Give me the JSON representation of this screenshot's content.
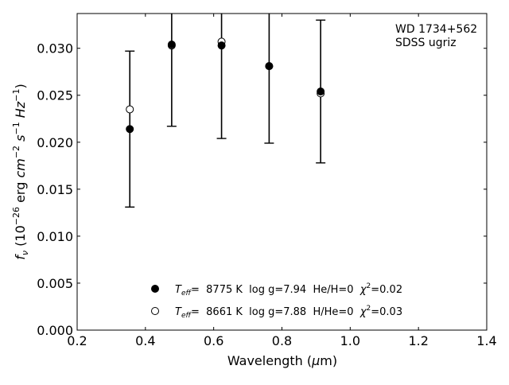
{
  "chart_data": {
    "type": "scatter",
    "title": "",
    "xlabel": "Wavelength (μm)",
    "ylabel": "f_ν (10^-26 erg cm^-2 s^-1 Hz^-1)",
    "xlim": [
      0.2,
      1.4
    ],
    "ylim": [
      0.0,
      0.0337
    ],
    "x_ticks": [
      0.2,
      0.4,
      0.6,
      0.8,
      1.0,
      1.2,
      1.4
    ],
    "x_tick_labels": [
      "0.2",
      "0.4",
      "0.6",
      "0.8",
      "1.0",
      "1.2",
      "1.4"
    ],
    "y_ticks": [
      0.0,
      0.005,
      0.01,
      0.015,
      0.02,
      0.025,
      0.03
    ],
    "y_tick_labels": [
      "0.000",
      "0.005",
      "0.010",
      "0.015",
      "0.020",
      "0.025",
      "0.030"
    ],
    "grid": false,
    "annotation": [
      "WD 1734+562",
      "SDSS ugriz"
    ],
    "observed": {
      "bands": [
        "u",
        "g",
        "r",
        "i",
        "z"
      ],
      "x": [
        0.3543,
        0.477,
        0.6231,
        0.7625,
        0.9134
      ],
      "y": [
        0.0214,
        0.0304,
        0.0303,
        0.028,
        0.0254
      ],
      "yerr": [
        0.0083,
        0.0087,
        0.0099,
        0.0081,
        0.0076
      ]
    },
    "series": [
      {
        "marker": "filled-circle",
        "x": [
          0.3543,
          0.477,
          0.6231,
          0.7625,
          0.9134
        ],
        "y": [
          0.0214,
          0.0304,
          0.0303,
          0.0281,
          0.0254
        ],
        "legend_parts": {
          "teff_sym": "T",
          "teff_sub": "eff",
          "teff_val": "=  8775 K  log g=7.94  He/H=0  ",
          "chi_sym": "χ",
          "chi_sup": "2",
          "chi_val": "=0.02"
        }
      },
      {
        "marker": "open-circle",
        "x": [
          0.3543,
          0.477,
          0.6231,
          0.7625,
          0.9134
        ],
        "y": [
          0.0235,
          0.0303,
          0.0307,
          0.0281,
          0.0252
        ],
        "legend_parts": {
          "teff_sym": "T",
          "teff_sub": "eff",
          "teff_val": "=  8661 K  log g=7.88  H/He=0  ",
          "chi_sym": "χ",
          "chi_sup": "2",
          "chi_val": "=0.03"
        }
      }
    ],
    "legend_location": "lower-center",
    "colors": {
      "marker": "#000000",
      "axis": "#000000",
      "background": "#ffffff"
    }
  }
}
